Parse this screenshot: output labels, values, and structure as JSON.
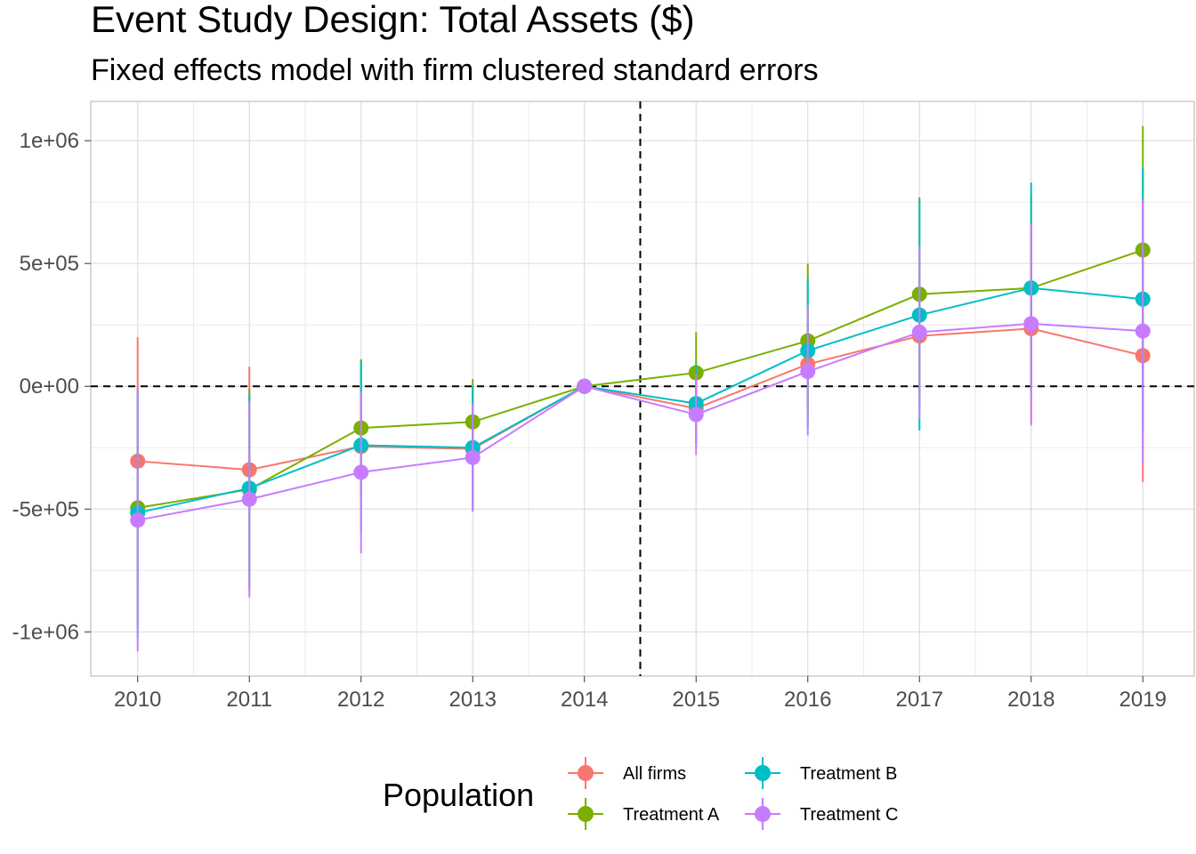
{
  "chart_data": {
    "type": "line",
    "title": "Event Study Design: Total Assets ($)",
    "subtitle": "Fixed effects model with firm clustered standard errors",
    "xlabel": "",
    "ylabel": "",
    "x": [
      2010,
      2011,
      2012,
      2013,
      2014,
      2015,
      2016,
      2017,
      2018,
      2019
    ],
    "x_tick_labels": [
      "2010",
      "2011",
      "2012",
      "2013",
      "2014",
      "2015",
      "2016",
      "2017",
      "2018",
      "2019"
    ],
    "y_ticks": [
      1000000,
      500000,
      0,
      -500000,
      -1000000
    ],
    "y_tick_labels": [
      "1e+06",
      "5e+05",
      "0e+00",
      "-5e+05",
      "-1e+06"
    ],
    "ylim": [
      -1180000,
      1160000
    ],
    "xlim": [
      2009.58,
      2019.46
    ],
    "reference_lines": {
      "vertical_x": 2014.5,
      "horizontal_y": 0,
      "style": "dashed"
    },
    "grid": true,
    "legend": {
      "title": "Population",
      "position": "bottom"
    },
    "series": [
      {
        "name": "All firms",
        "color": "#F8766D",
        "values": [
          -305000,
          -340000,
          -245000,
          -255000,
          0,
          -90000,
          90000,
          205000,
          235000,
          125000
        ],
        "lower": [
          -810000,
          -760000,
          -600000,
          -510000,
          0,
          -250000,
          -110000,
          -90000,
          -150000,
          -390000
        ],
        "upper": [
          200000,
          80000,
          110000,
          0,
          0,
          70000,
          290000,
          500000,
          620000,
          640000
        ]
      },
      {
        "name": "Treatment A",
        "color": "#7CAE00",
        "values": [
          -495000,
          -420000,
          -170000,
          -145000,
          0,
          55000,
          185000,
          375000,
          400000,
          555000
        ],
        "lower": [
          -980000,
          -830000,
          -450000,
          -320000,
          0,
          -110000,
          -130000,
          -20000,
          20000,
          50000
        ],
        "upper": [
          -10000,
          -10000,
          110000,
          30000,
          0,
          220000,
          500000,
          770000,
          780000,
          1060000
        ]
      },
      {
        "name": "Treatment B",
        "color": "#00BFC4",
        "values": [
          -515000,
          -415000,
          -240000,
          -250000,
          0,
          -70000,
          145000,
          290000,
          400000,
          355000
        ],
        "lower": [
          -1020000,
          -800000,
          -580000,
          -500000,
          0,
          -230000,
          -170000,
          -180000,
          -30000,
          -180000
        ],
        "upper": [
          -10000,
          -30000,
          100000,
          0,
          0,
          90000,
          440000,
          760000,
          830000,
          890000
        ]
      },
      {
        "name": "Treatment C",
        "color": "#C77CFF",
        "values": [
          -545000,
          -460000,
          -350000,
          -290000,
          0,
          -115000,
          60000,
          220000,
          255000,
          225000
        ],
        "lower": [
          -1080000,
          -860000,
          -680000,
          -510000,
          0,
          -280000,
          -200000,
          -130000,
          -160000,
          -310000
        ],
        "upper": [
          -10000,
          -60000,
          -20000,
          -70000,
          0,
          50000,
          330000,
          570000,
          660000,
          760000
        ]
      }
    ]
  }
}
